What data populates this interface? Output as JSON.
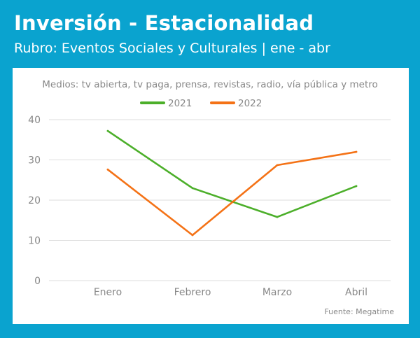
{
  "header": {
    "title": "Inversión - Estacionalidad",
    "subtitle": "Rubro: Eventos Sociales y Culturales | ene - abr"
  },
  "colors": {
    "background": "#0aa3cf",
    "panel": "#ffffff",
    "text_gray": "#888888",
    "grid": "#dddddd"
  },
  "chart_data": {
    "type": "line",
    "title": "Medios: tv abierta, tv paga, prensa, revistas, radio, vía pública y metro",
    "categories": [
      "Enero",
      "Febrero",
      "Marzo",
      "Abril"
    ],
    "series": [
      {
        "name": "2021",
        "color": "#4caf2a",
        "values": [
          37.2,
          23.0,
          15.8,
          23.5
        ]
      },
      {
        "name": "2022",
        "color": "#f47216",
        "values": [
          27.6,
          11.3,
          28.7,
          32.0
        ]
      }
    ],
    "ylim": [
      0,
      40
    ],
    "yticks": [
      0,
      10,
      20,
      30,
      40
    ],
    "grid": true,
    "legend_position": "top-center",
    "source": "Fuente: Megatime"
  }
}
